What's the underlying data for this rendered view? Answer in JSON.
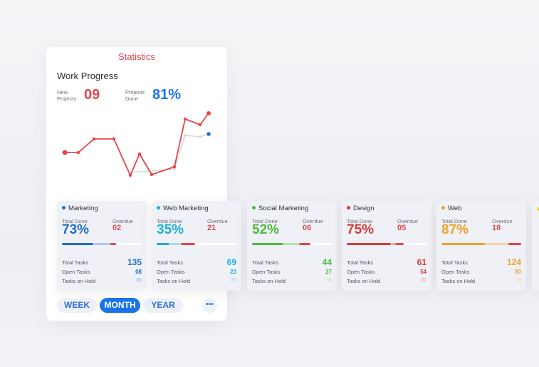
{
  "panel": {
    "title": "Statistics",
    "section_title": "Work Progress"
  },
  "metrics": {
    "new_projects_label": "New Projects",
    "new_projects_value": "09",
    "projects_done_label": "Projects Done",
    "projects_done_value": "81%"
  },
  "colors": {
    "red": "#e0474c",
    "blue": "#1874e8",
    "gray_line": "#d9d9de"
  },
  "labels": {
    "total_done": "Total Done",
    "overdue": "Overdue",
    "total_tasks": "Total Tasks",
    "open_tasks": "Open Tasks",
    "tasks_on_hold": "Tasks on Hold"
  },
  "cards": [
    {
      "name": "Marketing",
      "total_done": "73%",
      "overdue": "02",
      "total_tasks": "135",
      "open_tasks": "08",
      "on_hold": "06",
      "color": "#1f6fc9",
      "light": "#a9c8ee",
      "progress": 0.73
    },
    {
      "name": "Web Marketing",
      "total_done": "35%",
      "overdue": "21",
      "total_tasks": "69",
      "open_tasks": "23",
      "on_hold": "20",
      "color": "#1db0d8",
      "light": "#a2dcec",
      "progress": 0.35
    },
    {
      "name": "Social Marketing",
      "total_done": "52%",
      "overdue": "06",
      "total_tasks": "44",
      "open_tasks": "27",
      "on_hold": "11",
      "color": "#4cbb3c",
      "light": "#b5e0ad",
      "progress": 0.52
    },
    {
      "name": "Design",
      "total_done": "75%",
      "overdue": "05",
      "total_tasks": "61",
      "open_tasks": "54",
      "on_hold": "02",
      "color": "#d93a3a",
      "light": "#f0a9a9",
      "progress": 0.75
    },
    {
      "name": "Web",
      "total_done": "87%",
      "overdue": "18",
      "total_tasks": "124",
      "open_tasks": "93",
      "on_hold": "23",
      "color": "#f2a22a",
      "light": "#f8d59c",
      "progress": 0.87
    }
  ],
  "period_buttons": [
    "WEEK",
    "MONTH",
    "YEAR"
  ],
  "active_period": "MONTH",
  "more_icon": "more-dots-icon"
}
